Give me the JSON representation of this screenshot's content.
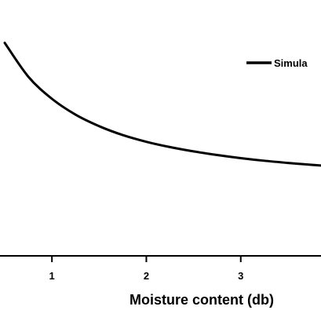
{
  "chart_data": {
    "type": "line",
    "xlabel": "Moisture content (db)",
    "ylabel": "",
    "xlim": [
      0.45,
      3.85
    ],
    "ylim": [
      0,
      1
    ],
    "x_ticks": [
      1,
      2,
      3
    ],
    "x_tick_labels": [
      "1",
      "2",
      "3"
    ],
    "legend": {
      "placement": "top-right",
      "entries": [
        "Simula"
      ]
    },
    "grid": false,
    "series": [
      {
        "name": "Simula",
        "color": "#000000",
        "x": [
          0.5,
          0.75,
          1.0,
          1.25,
          1.5,
          1.75,
          2.0,
          2.25,
          2.5,
          2.75,
          3.0,
          3.25,
          3.5,
          3.75,
          3.85
        ],
        "y": [
          0.887,
          0.746,
          0.654,
          0.588,
          0.54,
          0.503,
          0.475,
          0.453,
          0.435,
          0.42,
          0.407,
          0.396,
          0.387,
          0.379,
          0.376
        ]
      }
    ]
  }
}
